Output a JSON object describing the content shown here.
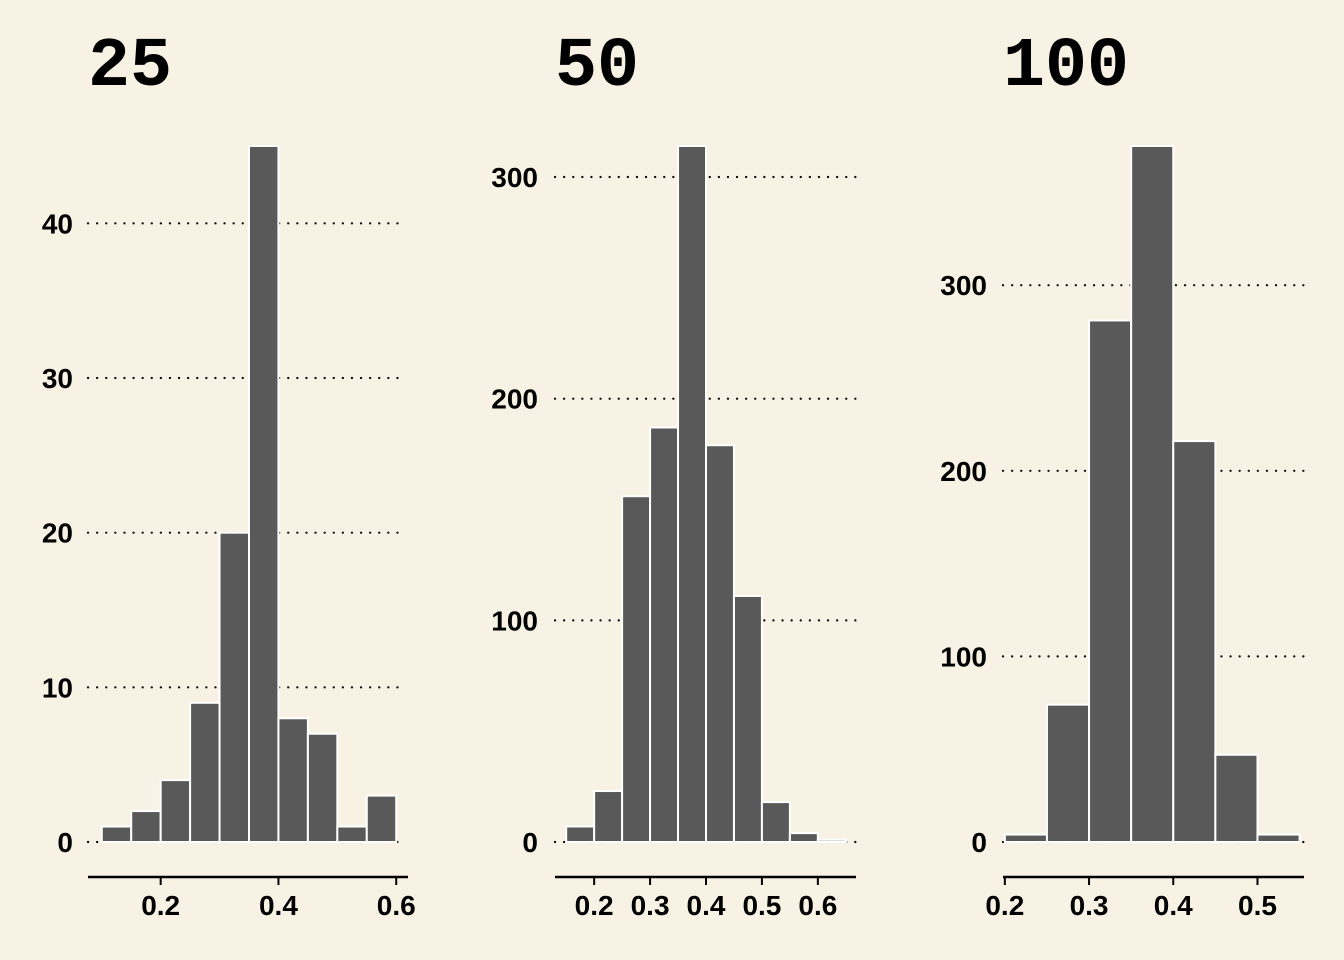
{
  "colors": {
    "background": "#f8f2e4",
    "bar_fill": "#595959",
    "bar_edge": "#ffffff",
    "grid": "#000000",
    "axis": "#000000"
  },
  "chart_data": [
    {
      "type": "bar",
      "title": "25",
      "bin_width": 0.05,
      "x": [
        0.125,
        0.175,
        0.225,
        0.275,
        0.325,
        0.375,
        0.425,
        0.475,
        0.525,
        0.575
      ],
      "values": [
        1,
        2,
        4,
        9,
        20,
        45,
        8,
        7,
        1,
        3
      ],
      "xticks": [
        0.2,
        0.4,
        0.6
      ],
      "yticks": [
        0,
        10,
        20,
        30,
        40
      ],
      "xlim": [
        0.08,
        0.62
      ],
      "ylim": [
        0,
        45
      ],
      "grid": "horizontal-dotted",
      "xlabel": "",
      "ylabel": ""
    },
    {
      "type": "bar",
      "title": "50",
      "bin_width": 0.05,
      "x": [
        0.175,
        0.225,
        0.275,
        0.325,
        0.375,
        0.425,
        0.475,
        0.525,
        0.575,
        0.625
      ],
      "values": [
        7,
        23,
        156,
        187,
        314,
        179,
        111,
        18,
        4,
        1
      ],
      "xticks": [
        0.2,
        0.3,
        0.4,
        0.5,
        0.6
      ],
      "yticks": [
        0,
        100,
        200,
        300
      ],
      "xlim": [
        0.13,
        0.67
      ],
      "ylim": [
        0,
        314
      ],
      "grid": "horizontal-dotted",
      "xlabel": "",
      "ylabel": ""
    },
    {
      "type": "bar",
      "title": "100",
      "bin_width": 0.05,
      "x": [
        0.225,
        0.275,
        0.325,
        0.375,
        0.425,
        0.475,
        0.525
      ],
      "values": [
        4,
        74,
        281,
        375,
        216,
        47,
        4
      ],
      "xticks": [
        0.2,
        0.3,
        0.4,
        0.5
      ],
      "yticks": [
        0,
        100,
        200,
        300
      ],
      "xlim": [
        0.18,
        0.56
      ],
      "ylim": [
        0,
        375
      ],
      "grid": "horizontal-dotted",
      "xlabel": "",
      "ylabel": ""
    }
  ]
}
